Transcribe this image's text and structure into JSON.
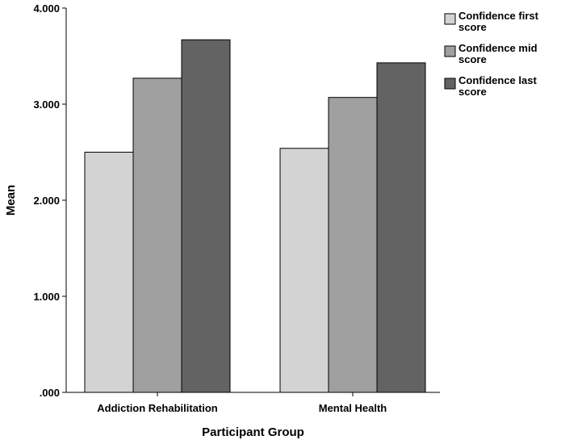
{
  "chart_data": {
    "type": "bar",
    "title": "",
    "xlabel": "Participant Group",
    "ylabel": "Mean",
    "categories": [
      "Addiction Rehabilitation",
      "Mental Health"
    ],
    "series": [
      {
        "name": "Confidence first score",
        "name_lines": [
          "Confidence first",
          "score"
        ],
        "color": "#d3d3d3",
        "values": [
          2.5,
          2.54
        ]
      },
      {
        "name": "Confidence mid score",
        "name_lines": [
          "Confidence mid",
          "score"
        ],
        "color": "#a0a0a0",
        "values": [
          3.27,
          3.07
        ]
      },
      {
        "name": "Confidence last score",
        "name_lines": [
          "Confidence last",
          "score"
        ],
        "color": "#636363",
        "values": [
          3.67,
          3.43
        ]
      }
    ],
    "ylim": [
      0,
      4
    ],
    "yticks": [
      {
        "value": 0,
        "label": ".000"
      },
      {
        "value": 1,
        "label": "1.000"
      },
      {
        "value": 2,
        "label": "2.000"
      },
      {
        "value": 3,
        "label": "3.000"
      },
      {
        "value": 4,
        "label": "4.000"
      }
    ],
    "grid": false,
    "legend": "right"
  }
}
